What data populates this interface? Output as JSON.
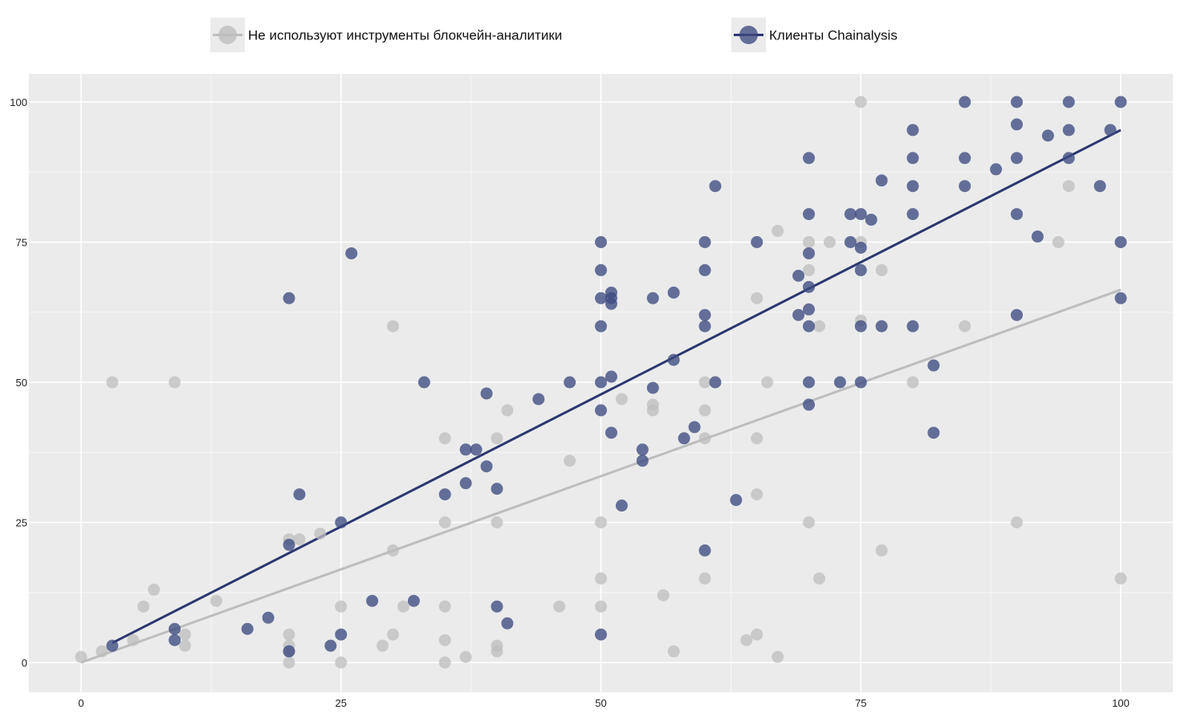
{
  "chart_data": {
    "type": "scatter",
    "xlim": [
      -5,
      105
    ],
    "ylim": [
      -5,
      105
    ],
    "x_ticks": [
      0,
      25,
      50,
      75,
      100
    ],
    "y_ticks": [
      0,
      25,
      50,
      75,
      100
    ],
    "x_tick_labels": [
      "0",
      "25",
      "50",
      "75",
      "100"
    ],
    "y_tick_labels": [
      "0",
      "25",
      "50",
      "75",
      "100"
    ],
    "grid": true,
    "legend_position": "top",
    "series": [
      {
        "name": "Не используют инструменты блокчейн-аналитики",
        "color": "#bdbdbd",
        "trendline": [
          [
            0,
            0
          ],
          [
            100,
            66.5
          ]
        ],
        "points": [
          [
            0,
            1
          ],
          [
            2,
            2
          ],
          [
            3,
            50
          ],
          [
            5,
            4
          ],
          [
            6,
            10
          ],
          [
            7,
            13
          ],
          [
            9,
            50
          ],
          [
            10,
            3
          ],
          [
            10,
            5
          ],
          [
            13,
            11
          ],
          [
            20,
            0
          ],
          [
            20,
            2
          ],
          [
            20,
            3
          ],
          [
            20,
            5
          ],
          [
            20,
            22
          ],
          [
            21,
            22
          ],
          [
            23,
            23
          ],
          [
            25,
            0
          ],
          [
            25,
            10
          ],
          [
            29,
            3
          ],
          [
            30,
            5
          ],
          [
            30,
            20
          ],
          [
            30,
            60
          ],
          [
            31,
            10
          ],
          [
            35,
            0
          ],
          [
            35,
            4
          ],
          [
            35,
            10
          ],
          [
            35,
            25
          ],
          [
            35,
            40
          ],
          [
            37,
            1
          ],
          [
            40,
            2
          ],
          [
            40,
            3
          ],
          [
            40,
            25
          ],
          [
            40,
            40
          ],
          [
            41,
            45
          ],
          [
            46,
            10
          ],
          [
            47,
            36
          ],
          [
            50,
            10
          ],
          [
            50,
            15
          ],
          [
            50,
            25
          ],
          [
            52,
            47
          ],
          [
            55,
            45
          ],
          [
            55,
            46
          ],
          [
            56,
            12
          ],
          [
            57,
            2
          ],
          [
            60,
            15
          ],
          [
            60,
            40
          ],
          [
            60,
            45
          ],
          [
            60,
            50
          ],
          [
            64,
            4
          ],
          [
            65,
            5
          ],
          [
            65,
            30
          ],
          [
            65,
            40
          ],
          [
            65,
            65
          ],
          [
            66,
            50
          ],
          [
            67,
            1
          ],
          [
            67,
            77
          ],
          [
            70,
            25
          ],
          [
            70,
            70
          ],
          [
            70,
            75
          ],
          [
            71,
            15
          ],
          [
            71,
            60
          ],
          [
            72,
            75
          ],
          [
            75,
            61
          ],
          [
            75,
            75
          ],
          [
            75,
            100
          ],
          [
            77,
            20
          ],
          [
            77,
            70
          ],
          [
            80,
            50
          ],
          [
            85,
            60
          ],
          [
            90,
            25
          ],
          [
            94,
            75
          ],
          [
            95,
            85
          ],
          [
            100,
            15
          ]
        ]
      },
      {
        "name": "Клиенты Chainalysis",
        "color": "#3c4a80",
        "trendline": [
          [
            3,
            3.5
          ],
          [
            100,
            95
          ]
        ],
        "points": [
          [
            3,
            3
          ],
          [
            9,
            4
          ],
          [
            9,
            6
          ],
          [
            16,
            6
          ],
          [
            18,
            8
          ],
          [
            20,
            2
          ],
          [
            20,
            21
          ],
          [
            20,
            65
          ],
          [
            21,
            30
          ],
          [
            24,
            3
          ],
          [
            25,
            5
          ],
          [
            25,
            25
          ],
          [
            26,
            73
          ],
          [
            28,
            11
          ],
          [
            32,
            11
          ],
          [
            33,
            50
          ],
          [
            35,
            30
          ],
          [
            37,
            32
          ],
          [
            37,
            38
          ],
          [
            38,
            38
          ],
          [
            39,
            35
          ],
          [
            39,
            48
          ],
          [
            40,
            10
          ],
          [
            40,
            31
          ],
          [
            41,
            7
          ],
          [
            44,
            47
          ],
          [
            47,
            50
          ],
          [
            50,
            5
          ],
          [
            50,
            45
          ],
          [
            50,
            50
          ],
          [
            50,
            60
          ],
          [
            50,
            65
          ],
          [
            50,
            70
          ],
          [
            50,
            75
          ],
          [
            51,
            41
          ],
          [
            51,
            51
          ],
          [
            51,
            64
          ],
          [
            51,
            65
          ],
          [
            51,
            66
          ],
          [
            52,
            28
          ],
          [
            54,
            36
          ],
          [
            54,
            38
          ],
          [
            55,
            49
          ],
          [
            55,
            65
          ],
          [
            57,
            54
          ],
          [
            57,
            66
          ],
          [
            58,
            40
          ],
          [
            59,
            42
          ],
          [
            60,
            20
          ],
          [
            60,
            60
          ],
          [
            60,
            62
          ],
          [
            60,
            70
          ],
          [
            60,
            75
          ],
          [
            61,
            50
          ],
          [
            61,
            85
          ],
          [
            63,
            29
          ],
          [
            65,
            75
          ],
          [
            69,
            62
          ],
          [
            69,
            69
          ],
          [
            70,
            46
          ],
          [
            70,
            50
          ],
          [
            70,
            60
          ],
          [
            70,
            63
          ],
          [
            70,
            67
          ],
          [
            70,
            73
          ],
          [
            70,
            80
          ],
          [
            70,
            90
          ],
          [
            73,
            50
          ],
          [
            74,
            75
          ],
          [
            74,
            80
          ],
          [
            75,
            50
          ],
          [
            75,
            60
          ],
          [
            75,
            70
          ],
          [
            75,
            74
          ],
          [
            75,
            80
          ],
          [
            76,
            79
          ],
          [
            77,
            60
          ],
          [
            77,
            86
          ],
          [
            80,
            60
          ],
          [
            80,
            80
          ],
          [
            80,
            85
          ],
          [
            80,
            90
          ],
          [
            80,
            95
          ],
          [
            82,
            41
          ],
          [
            82,
            53
          ],
          [
            85,
            85
          ],
          [
            85,
            90
          ],
          [
            85,
            100
          ],
          [
            88,
            88
          ],
          [
            90,
            62
          ],
          [
            90,
            80
          ],
          [
            90,
            90
          ],
          [
            90,
            96
          ],
          [
            90,
            100
          ],
          [
            92,
            76
          ],
          [
            93,
            94
          ],
          [
            95,
            90
          ],
          [
            95,
            95
          ],
          [
            95,
            100
          ],
          [
            98,
            85
          ],
          [
            99,
            95
          ],
          [
            100,
            65
          ],
          [
            100,
            75
          ],
          [
            100,
            100
          ]
        ]
      }
    ]
  }
}
